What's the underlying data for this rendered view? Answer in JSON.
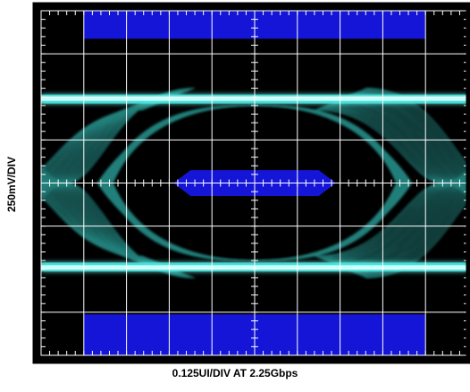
{
  "chart_data": {
    "type": "eye_diagram",
    "xlabel": "0.125UI/DIV AT 2.25Gbps",
    "ylabel": "250mV/DIV",
    "x_divisions": 10,
    "y_divisions": 8,
    "x_per_div_ui": 0.125,
    "y_per_div_mv": 250,
    "bit_rate_gbps": 2.25,
    "trace_levels_div": [
      1.95,
      -1.95
    ],
    "crossing_points_div": [
      -5.0,
      5.0
    ],
    "eye_opening_div": {
      "x_left": -2.9,
      "x_right": 2.9,
      "y_top": 1.75,
      "y_bottom": -1.75
    },
    "mask": {
      "inner_hexagon_div": [
        [
          -1.9,
          0
        ],
        [
          -1.5,
          0.3
        ],
        [
          1.5,
          0.3
        ],
        [
          1.9,
          0
        ],
        [
          1.5,
          -0.3
        ],
        [
          -1.5,
          -0.3
        ]
      ],
      "top_band_div": {
        "x1": -4.0,
        "x2": 4.0,
        "y1": 3.35,
        "y2": 4.0
      },
      "bottom_band_div": {
        "x1": -4.0,
        "x2": 4.0,
        "y1": -4.0,
        "y2": -3.05
      }
    },
    "colors": {
      "background": "#000000",
      "grid": "#ffffff",
      "trace": "#3ee8e0",
      "trace_core": "#c8fffb",
      "mask": "#1515d8"
    }
  }
}
